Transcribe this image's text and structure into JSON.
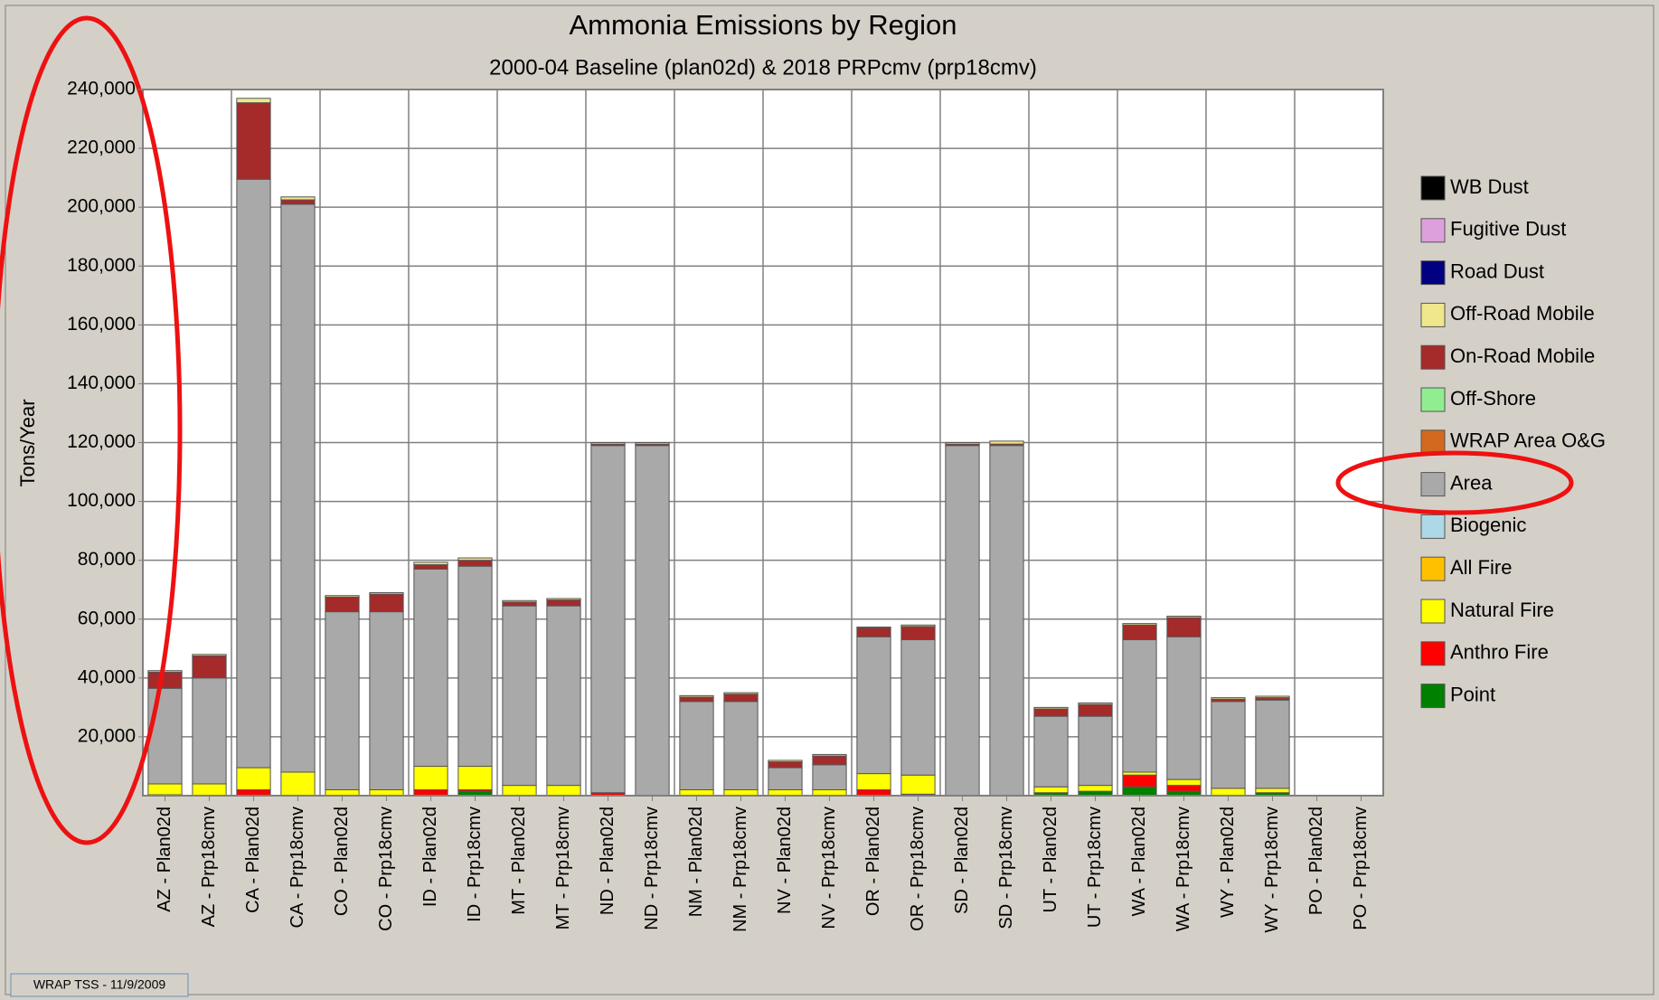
{
  "chart_data": {
    "type": "stacked_bar",
    "title": "Ammonia Emissions by Region",
    "subtitle": "2000-04 Baseline (plan02d) & 2018 PRPcmv (prp18cmv)",
    "y_label": "Tons/Year",
    "footer": "WRAP TSS - 11/9/2009",
    "categories": [
      "AZ - Plan02d",
      "AZ - Prp18cmv",
      "CA - Plan02d",
      "CA - Prp18cmv",
      "CO - Plan02d",
      "CO - Prp18cmv",
      "ID - Plan02d",
      "ID - Prp18cmv",
      "MT - Plan02d",
      "MT - Prp18cmv",
      "ND - Plan02d",
      "ND - Prp18cmv",
      "NM - Plan02d",
      "NM - Prp18cmv",
      "NV - Plan02d",
      "NV - Prp18cmv",
      "OR - Plan02d",
      "OR - Prp18cmv",
      "SD - Plan02d",
      "SD - Prp18cmv",
      "UT - Plan02d",
      "UT - Prp18cmv",
      "WA - Plan02d",
      "WA - Prp18cmv",
      "WY - Plan02d",
      "WY - Prp18cmv",
      "PO - Plan02d",
      "PO - Prp18cmv"
    ],
    "ylim": [
      0,
      240000
    ],
    "yticks": [
      {
        "value": 20000,
        "label": "20,000"
      },
      {
        "value": 40000,
        "label": "40,000"
      },
      {
        "value": 60000,
        "label": "60,000"
      },
      {
        "value": 80000,
        "label": "80,000"
      },
      {
        "value": 100000,
        "label": "100,000"
      },
      {
        "value": 120000,
        "label": "120,000"
      },
      {
        "value": 140000,
        "label": "140,000"
      },
      {
        "value": 160000,
        "label": "160,000"
      },
      {
        "value": 180000,
        "label": "180,000"
      },
      {
        "value": 200000,
        "label": "200,000"
      },
      {
        "value": 220000,
        "label": "220,000"
      },
      {
        "value": 240000,
        "label": "240,000"
      }
    ],
    "grid": true,
    "legend": "right",
    "series": [
      {
        "name": "WB Dust",
        "color": "#000000",
        "values": [
          0,
          0,
          0,
          0,
          0,
          0,
          0,
          0,
          0,
          0,
          0,
          0,
          0,
          0,
          0,
          0,
          0,
          0,
          0,
          0,
          0,
          0,
          0,
          0,
          0,
          0,
          0,
          0
        ]
      },
      {
        "name": "Fugitive Dust",
        "color": "#dda0dd",
        "values": [
          0,
          0,
          0,
          0,
          0,
          0,
          0,
          0,
          0,
          0,
          0,
          0,
          0,
          0,
          0,
          0,
          0,
          0,
          0,
          0,
          0,
          0,
          0,
          0,
          0,
          0,
          0,
          0
        ]
      },
      {
        "name": "Road Dust",
        "color": "#000080",
        "values": [
          0,
          0,
          0,
          0,
          0,
          0,
          0,
          0,
          0,
          0,
          0,
          0,
          0,
          0,
          0,
          0,
          0,
          0,
          0,
          0,
          0,
          0,
          0,
          0,
          0,
          0,
          0,
          0
        ]
      },
      {
        "name": "Off-Road Mobile",
        "color": "#f0e68c",
        "values": [
          500,
          500,
          1500,
          1000,
          500,
          500,
          800,
          800,
          500,
          500,
          500,
          500,
          500,
          500,
          500,
          500,
          300,
          500,
          500,
          1000,
          500,
          500,
          500,
          500,
          500,
          500,
          0,
          0
        ]
      },
      {
        "name": "On-Road Mobile",
        "color": "#a52a2a",
        "values": [
          5500,
          7500,
          26000,
          1500,
          5000,
          6000,
          1500,
          2000,
          1300,
          2000,
          500,
          500,
          1500,
          2500,
          2000,
          3000,
          3000,
          4500,
          500,
          500,
          2500,
          4000,
          5000,
          6500,
          800,
          800,
          0,
          0
        ]
      },
      {
        "name": "Off-Shore",
        "color": "#90ee90",
        "values": [
          0,
          0,
          0,
          0,
          0,
          0,
          0,
          0,
          0,
          0,
          0,
          0,
          0,
          0,
          0,
          0,
          0,
          0,
          0,
          0,
          0,
          0,
          0,
          0,
          0,
          0,
          0,
          0
        ]
      },
      {
        "name": "WRAP Area O&G",
        "color": "#d2691e",
        "values": [
          0,
          0,
          0,
          0,
          0,
          0,
          0,
          0,
          0,
          0,
          0,
          0,
          0,
          0,
          0,
          0,
          0,
          0,
          0,
          0,
          0,
          0,
          0,
          0,
          0,
          0,
          0,
          0
        ]
      },
      {
        "name": "Area",
        "color": "#a9a9a9",
        "values": [
          32500,
          36000,
          200000,
          193000,
          60500,
          60500,
          67000,
          68000,
          61000,
          61000,
          118000,
          119000,
          30000,
          30000,
          7500,
          8500,
          46500,
          46000,
          119000,
          119000,
          24000,
          23500,
          45000,
          48500,
          29500,
          30000,
          0,
          0
        ]
      },
      {
        "name": "Biogenic",
        "color": "#add8e6",
        "values": [
          0,
          0,
          0,
          0,
          0,
          0,
          0,
          0,
          0,
          0,
          0,
          0,
          0,
          0,
          0,
          0,
          0,
          0,
          0,
          0,
          0,
          0,
          0,
          0,
          0,
          0,
          0,
          0
        ]
      },
      {
        "name": "All Fire",
        "color": "#ffc000",
        "values": [
          0,
          0,
          0,
          0,
          0,
          0,
          0,
          0,
          0,
          0,
          0,
          0,
          0,
          0,
          0,
          0,
          0,
          0,
          0,
          0,
          0,
          0,
          0,
          0,
          0,
          0,
          0,
          0
        ]
      },
      {
        "name": "Natural Fire",
        "color": "#ffff00",
        "values": [
          3700,
          4000,
          7500,
          8000,
          2000,
          2000,
          8000,
          8000,
          3500,
          3500,
          0,
          0,
          2000,
          2000,
          2000,
          2000,
          5500,
          6500,
          0,
          0,
          2000,
          2000,
          1000,
          2000,
          2500,
          1500,
          0,
          0
        ]
      },
      {
        "name": "Anthro Fire",
        "color": "#ff0000",
        "values": [
          300,
          0,
          2000,
          0,
          0,
          0,
          2000,
          500,
          0,
          0,
          1000,
          0,
          0,
          0,
          0,
          0,
          2000,
          500,
          0,
          0,
          0,
          0,
          4000,
          2000,
          0,
          0,
          0,
          0
        ]
      },
      {
        "name": "Point",
        "color": "#008000",
        "values": [
          0,
          0,
          0,
          0,
          0,
          0,
          0,
          1500,
          0,
          0,
          0,
          0,
          0,
          0,
          0,
          0,
          0,
          0,
          0,
          0,
          1000,
          1500,
          3000,
          1500,
          0,
          1000,
          0,
          0
        ]
      }
    ]
  }
}
